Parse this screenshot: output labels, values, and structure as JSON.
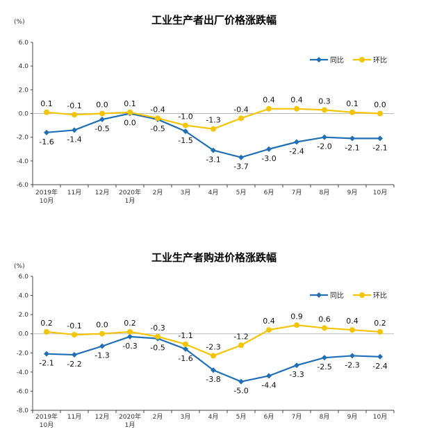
{
  "colors": {
    "yoy": "#1f6fb5",
    "mom": "#f5c400",
    "axis": "#444444",
    "zero": "#bbbbbb"
  },
  "chart_data": [
    {
      "type": "line",
      "title": "工业生产者出厂价格涨跌幅",
      "unit": "(%)",
      "categories": [
        [
          "2019年",
          "10月"
        ],
        [
          "11月"
        ],
        [
          "12月"
        ],
        [
          "2020年",
          "1月"
        ],
        [
          "2月"
        ],
        [
          "3月"
        ],
        [
          "4月"
        ],
        [
          "5月"
        ],
        [
          "6月"
        ],
        [
          "7月"
        ],
        [
          "8月"
        ],
        [
          "9月"
        ],
        [
          "10月"
        ]
      ],
      "y_ticks": [
        "6.0",
        "4.0",
        "2.0",
        "0.0",
        "-2.0",
        "-4.0",
        "-6.0"
      ],
      "ylim": [
        -6,
        6
      ],
      "legend_position": "top-right",
      "series": [
        {
          "name": "同比",
          "color": "#1f6fb5",
          "marker": "diamond",
          "values": [
            -1.6,
            -1.4,
            -0.5,
            0.0,
            -0.5,
            -1.5,
            -3.1,
            -3.7,
            -3.0,
            -2.4,
            -2.0,
            -2.1,
            -2.1
          ],
          "labels": [
            "-1.6",
            "-1.4",
            "-0.5",
            "0.0",
            "-0.5",
            "-1.5",
            "-3.1",
            "-3.7",
            "-3.0",
            "-2.4",
            "-2.0",
            "-2.1",
            "-2.1"
          ]
        },
        {
          "name": "环比",
          "color": "#f5c400",
          "marker": "circle",
          "values": [
            0.1,
            -0.1,
            0.0,
            0.1,
            -0.4,
            -1.0,
            -1.3,
            -0.4,
            0.4,
            0.4,
            0.3,
            0.1,
            0.0
          ],
          "labels": [
            "0.1",
            "-0.1",
            "0.0",
            "0.1",
            "-0.4",
            "-1.0",
            "-1.3",
            "-0.4",
            "0.4",
            "0.4",
            "0.3",
            "0.1",
            "0.0"
          ]
        }
      ]
    },
    {
      "type": "line",
      "title": "工业生产者购进价格涨跌幅",
      "unit": "(%)",
      "categories": [
        [
          "2019年",
          "10月"
        ],
        [
          "11月"
        ],
        [
          "12月"
        ],
        [
          "2020年",
          "1月"
        ],
        [
          "2月"
        ],
        [
          "3月"
        ],
        [
          "4月"
        ],
        [
          "5月"
        ],
        [
          "6月"
        ],
        [
          "7月"
        ],
        [
          "8月"
        ],
        [
          "9月"
        ],
        [
          "10月"
        ]
      ],
      "y_ticks": [
        "6.0",
        "4.0",
        "2.0",
        "0.0",
        "-2.0",
        "-4.0",
        "-6.0",
        "-8.0"
      ],
      "ylim": [
        -8,
        6
      ],
      "legend_position": "top-right",
      "series": [
        {
          "name": "同比",
          "color": "#1f6fb5",
          "marker": "diamond",
          "values": [
            -2.1,
            -2.2,
            -1.3,
            -0.3,
            -0.5,
            -1.6,
            -3.8,
            -5.0,
            -4.4,
            -3.3,
            -2.5,
            -2.3,
            -2.4
          ],
          "labels": [
            "-2.1",
            "-2.2",
            "-1.3",
            "-0.3",
            "-0.5",
            "-1.6",
            "-3.8",
            "-5.0",
            "-4.4",
            "-3.3",
            "-2.5",
            "-2.3",
            "-2.4"
          ]
        },
        {
          "name": "环比",
          "color": "#f5c400",
          "marker": "circle",
          "values": [
            0.2,
            -0.1,
            0.0,
            0.2,
            -0.3,
            -1.1,
            -2.3,
            -1.2,
            0.4,
            0.9,
            0.6,
            0.4,
            0.2
          ],
          "labels": [
            "0.2",
            "-0.1",
            "0.0",
            "0.2",
            "-0.3",
            "-1.1",
            "-2.3",
            "-1.2",
            "0.4",
            "0.9",
            "0.6",
            "0.4",
            "0.2"
          ]
        }
      ]
    }
  ]
}
